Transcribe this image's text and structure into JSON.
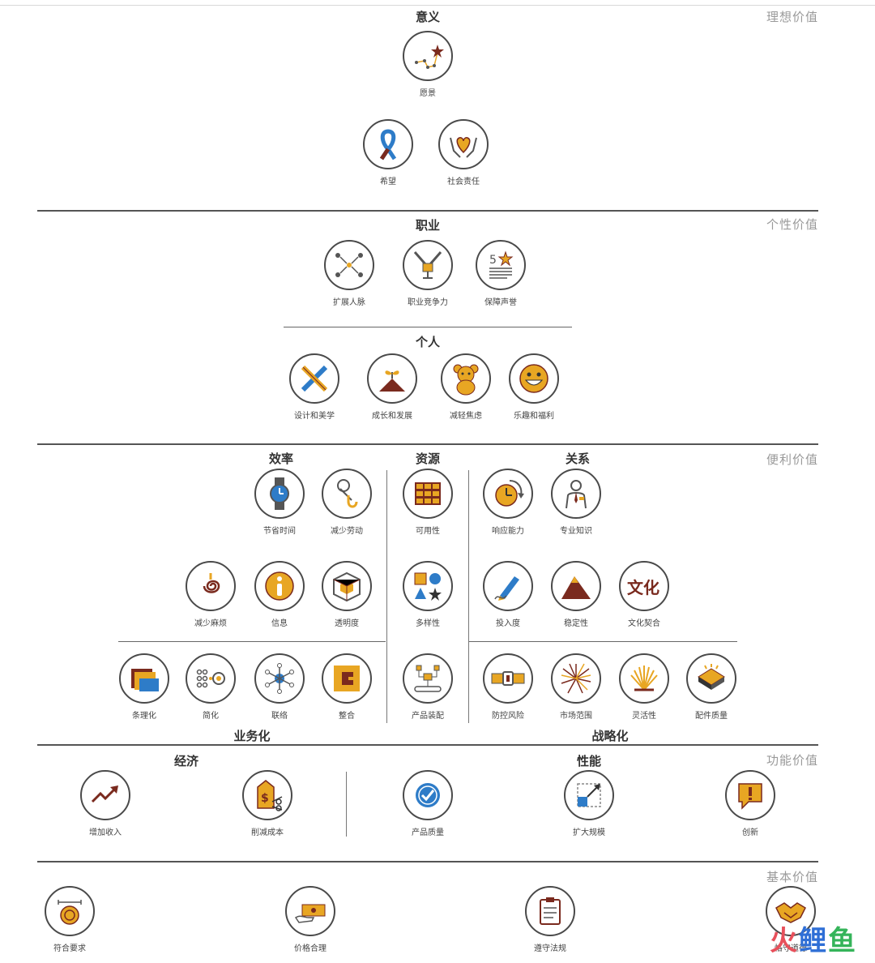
{
  "layers": [
    "理想价值",
    "个性价值",
    "便利价值",
    "功能价值",
    "基本价值"
  ],
  "categories": {
    "meaning": "意义",
    "career": "职业",
    "personal": "个人",
    "efficiency": "效率",
    "resources": "资源",
    "relationship": "关系",
    "business": "业务化",
    "strategic": "战略化",
    "economy": "经济",
    "performance": "性能"
  },
  "items": {
    "vision": "愿景",
    "hope": "希望",
    "social_responsibility": "社会责任",
    "network_expansion": "扩展人脉",
    "career_competitiveness": "职业竞争力",
    "reputation_assurance": "保障声誉",
    "design_aesthetics": "设计和美学",
    "growth_development": "成长和发展",
    "reduce_anxiety": "减轻焦虑",
    "fun_perks": "乐趣和福利",
    "save_time": "节省时间",
    "reduce_effort": "减少劳动",
    "availability": "可用性",
    "responsiveness": "响应能力",
    "expertise": "专业知识",
    "reduce_hassle": "减少麻烦",
    "information": "信息",
    "transparency": "透明度",
    "variety": "多样性",
    "commitment": "投入度",
    "stability": "稳定性",
    "cultural_fit": "文化契合",
    "organization": "条理化",
    "simplification": "简化",
    "connection": "联络",
    "integration": "整合",
    "configurability": "产品装配",
    "risk_reduction": "防控风险",
    "reach": "市场范围",
    "flexibility": "灵活性",
    "component_quality": "配件质量",
    "increase_revenue": "增加收入",
    "cost_reduction": "削减成本",
    "product_quality": "产品质量",
    "scalability": "扩大规模",
    "innovation": "创新",
    "meets_specifications": "符合要求",
    "acceptable_price": "价格合理",
    "regulatory_compliance": "遵守法规",
    "ethical_standards": "恪守道德"
  },
  "icons": {
    "vision": "constellation-icon",
    "hope": "ribbon-icon",
    "social_responsibility": "hands-heart-icon",
    "network_expansion": "people-network-icon",
    "career_competitiveness": "trophy-icon",
    "reputation_assurance": "rating-star-icon",
    "design_aesthetics": "pencil-ruler-icon",
    "growth_development": "sprout-icon",
    "reduce_anxiety": "teddy-bear-icon",
    "fun_perks": "smiley-icon",
    "save_time": "wristwatch-icon",
    "reduce_effort": "pulley-hook-icon",
    "availability": "shelves-icon",
    "responsiveness": "clock-arrow-icon",
    "expertise": "expert-person-icon",
    "reduce_hassle": "spiral-icon",
    "information": "info-icon",
    "transparency": "cube-icon",
    "variety": "shapes-icon",
    "commitment": "pen-signature-icon",
    "stability": "mountain-icon",
    "cultural_fit": "culture-text-icon",
    "organization": "folder-icon",
    "simplification": "dots-simplify-icon",
    "connection": "hub-icon",
    "integration": "puzzle-c-icon",
    "configurability": "assembly-icon",
    "risk_reduction": "seatbelt-icon",
    "reach": "starburst-icon",
    "flexibility": "fan-lines-icon",
    "component_quality": "chip-icon",
    "increase_revenue": "trend-up-icon",
    "cost_reduction": "price-tag-scissors-icon",
    "product_quality": "check-badge-icon",
    "scalability": "expand-arrow-icon",
    "innovation": "exclamation-icon",
    "meets_specifications": "measure-coin-icon",
    "acceptable_price": "banknote-hand-icon",
    "regulatory_compliance": "clipboard-icon",
    "ethical_standards": "handshake-icon"
  },
  "watermark": [
    "火",
    "鲤",
    "鱼"
  ],
  "colors": {
    "accent_gold": "#e8a623",
    "dark_red": "#7a2a1e",
    "blue": "#2e7cc8",
    "circle_border": "#4a4a4a",
    "layer_text": "#9a9a9a"
  }
}
